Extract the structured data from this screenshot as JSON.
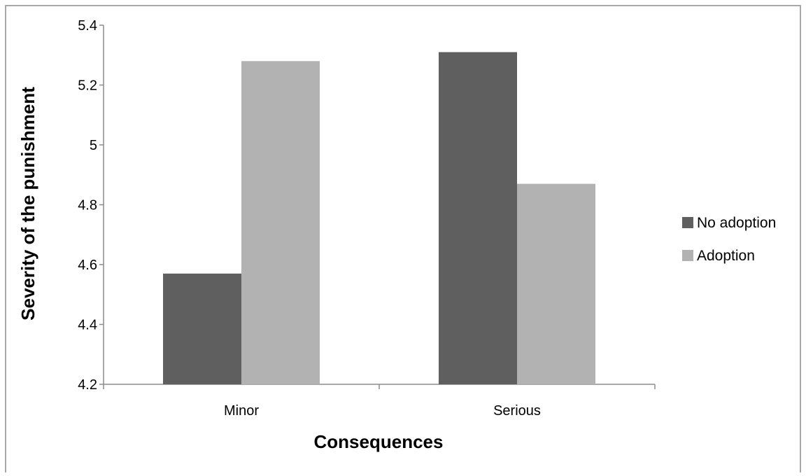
{
  "chart_data": {
    "type": "bar",
    "title": "",
    "xlabel": "Consequences",
    "ylabel": "Severity of the punishment",
    "categories": [
      "Minor",
      "Serious"
    ],
    "series": [
      {
        "name": "No adoption",
        "values": [
          4.57,
          5.31
        ],
        "color": "#5f5f5f"
      },
      {
        "name": "Adoption",
        "values": [
          5.28,
          4.87
        ],
        "color": "#b2b2b2"
      }
    ],
    "ylim": [
      4.2,
      5.4
    ],
    "yticks": [
      "4.2",
      "4.4",
      "4.6",
      "4.8",
      "5",
      "5.2",
      "5.4"
    ],
    "grid": false,
    "legend_position": "right"
  }
}
